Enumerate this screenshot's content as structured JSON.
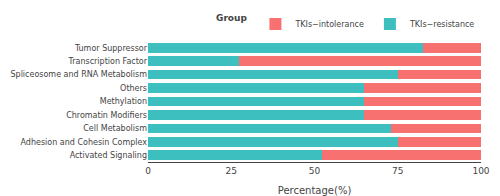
{
  "chart_data": {
    "type": "bar",
    "orientation": "horizontal",
    "stacked": true,
    "categories": [
      "Activated Signaling",
      "Adhesion and Cohesin Complex",
      "Cell Metabolism",
      "Chromatin Modifiers",
      "Methylation",
      "Others",
      "Spliceosome and RNA Metabolism",
      "Transcription Factor",
      "Tumor Suppressor"
    ],
    "series": [
      {
        "name": "TKIs−resistance",
        "color": "#3DBFBF",
        "values": [
          52.17,
          75.0,
          73.0,
          65.0,
          65.0,
          65.0,
          75.0,
          27.27,
          82.6
        ]
      },
      {
        "name": "TKIs−intolerance",
        "color": "#F87171",
        "values": [
          47.83,
          25.0,
          27.0,
          35.0,
          35.0,
          35.0,
          25.0,
          72.73,
          17.4
        ]
      }
    ],
    "xlabel": "Percentage(%)",
    "legend_title": "Group",
    "legend": "upper right",
    "xlim": [
      0,
      100
    ],
    "xticks": [
      0,
      25,
      50,
      75,
      100
    ],
    "grid": false
  }
}
